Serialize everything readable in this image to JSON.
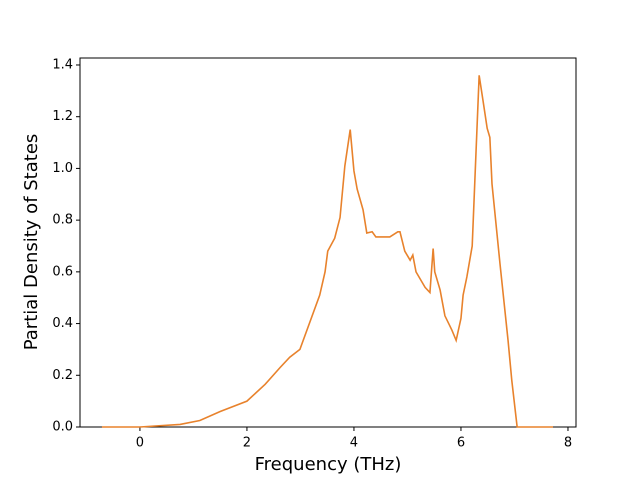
{
  "chart_data": {
    "type": "line",
    "xlabel": "Frequency (THz)",
    "ylabel": "Partial Density of States",
    "x": [
      -0.71,
      0,
      0.75,
      1.12,
      1.5,
      2,
      2.34,
      2.62,
      2.8,
      2.99,
      3.36,
      3.46,
      3.51,
      3.64,
      3.74,
      3.83,
      3.93,
      4.0,
      4.06,
      4.17,
      4.24,
      4.34,
      4.41,
      4.67,
      4.82,
      4.86,
      4.95,
      5.05,
      5.1,
      5.16,
      5.33,
      5.42,
      5.48,
      5.51,
      5.61,
      5.7,
      5.83,
      5.91,
      6.0,
      6.04,
      6.11,
      6.21,
      6.26,
      6.34,
      6.41,
      6.49,
      6.54,
      6.58,
      6.73,
      6.88,
      6.95,
      7.05,
      7.72
    ],
    "series": [
      {
        "color": "#e8822c",
        "values": [
          0,
          0,
          0.01,
          0.025,
          0.06,
          0.1,
          0.165,
          0.23,
          0.27,
          0.3,
          0.51,
          0.6,
          0.68,
          0.73,
          0.81,
          1.01,
          1.15,
          0.99,
          0.92,
          0.84,
          0.75,
          0.755,
          0.735,
          0.735,
          0.755,
          0.755,
          0.68,
          0.645,
          0.665,
          0.6,
          0.54,
          0.52,
          0.69,
          0.6,
          0.53,
          0.43,
          0.375,
          0.335,
          0.42,
          0.51,
          0.58,
          0.7,
          0.955,
          1.36,
          1.265,
          1.155,
          1.12,
          0.94,
          0.63,
          0.335,
          0.18,
          0,
          0
        ]
      }
    ],
    "xlim": [
      -1.12,
      8.15
    ],
    "ylim": [
      0,
      1.427
    ],
    "xticks": [
      0,
      2,
      4,
      6,
      8
    ],
    "yticks": [
      {
        "value": 0,
        "label": "0.0"
      },
      0.2,
      0.4,
      0.6,
      0.8,
      {
        "value": 1,
        "label": "1.0"
      },
      1.2,
      1.4
    ]
  }
}
